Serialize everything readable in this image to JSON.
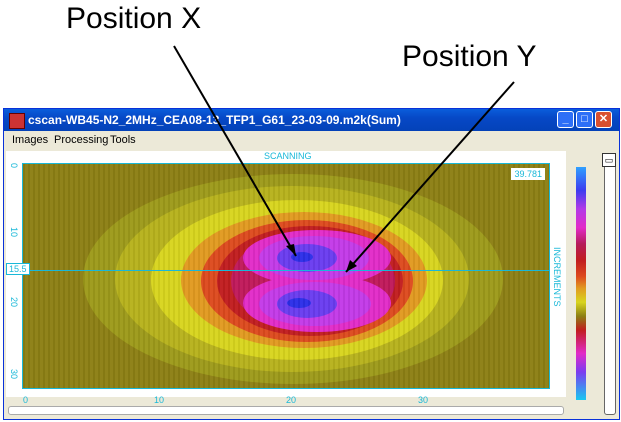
{
  "callouts": {
    "position_x": "Position X",
    "position_y": "Position Y"
  },
  "window": {
    "title": "cscan-WB45-N2_2MHz_CEA08-13_TFP1_G61_23-03-09.m2k(Sum)",
    "buttons": {
      "minimize": "_",
      "maximize": "□",
      "close": "✕"
    }
  },
  "menu": {
    "items": [
      "Images",
      "Processing",
      "Tools"
    ]
  },
  "scan": {
    "top_label": "SCANNING",
    "right_label": "INCREMENTS",
    "max_value": "39.781",
    "cursor_value": "15.5",
    "y_ticks": [
      "0",
      "10",
      "20",
      "30"
    ],
    "x_ticks": [
      "0",
      "10",
      "20",
      "30"
    ]
  },
  "colors": {
    "accent": "#19b8d8",
    "background_field": "#8c7f14",
    "peak": "#2b2ee8"
  },
  "icons": [
    "app-icon",
    "minimize-icon",
    "maximize-icon",
    "close-icon",
    "restore-icon"
  ]
}
